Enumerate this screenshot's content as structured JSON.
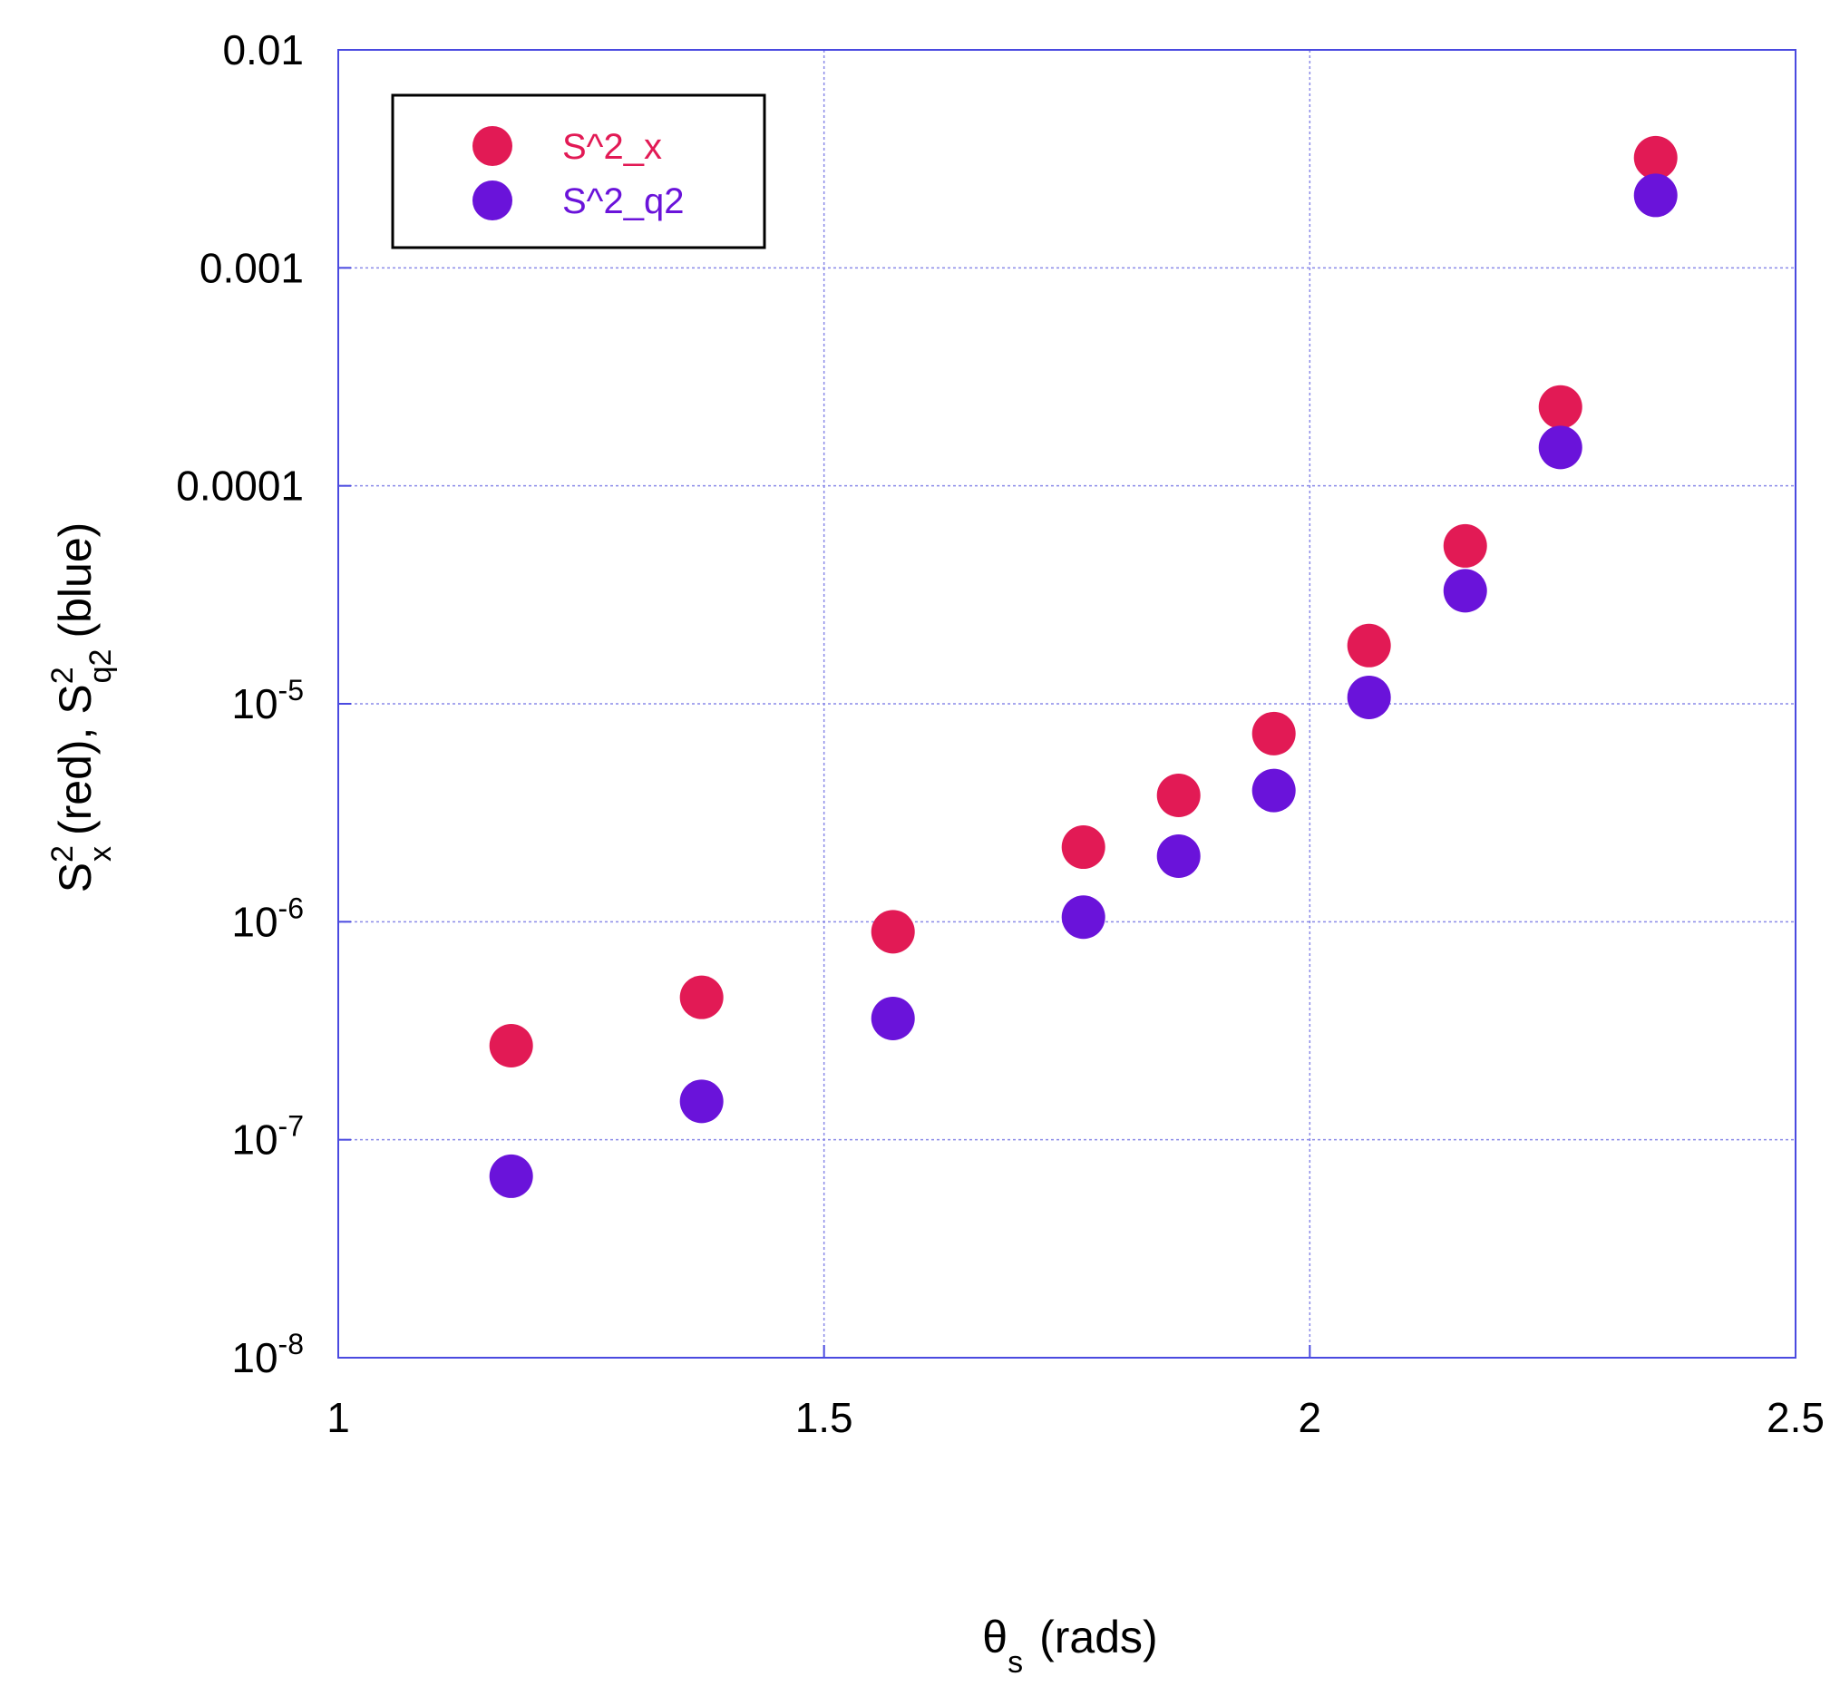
{
  "chart_data": {
    "type": "scatter",
    "title": "",
    "xlabel": {
      "symbol": "θ",
      "sub": "s",
      "rest": "(rads)"
    },
    "ylabel": {
      "s1": "S",
      "sup1": "2",
      "sub1": "x",
      "mid": "(red), ",
      "s2": "S",
      "sup2": "2",
      "sub2": "q2",
      "end": "(blue)"
    },
    "xlim": [
      1,
      2.5
    ],
    "ylim": [
      1e-08,
      0.01
    ],
    "yscale": "log",
    "grid": true,
    "x_ticks": [
      {
        "value": 1,
        "label": "1"
      },
      {
        "value": 1.5,
        "label": "1.5"
      },
      {
        "value": 2,
        "label": "2"
      },
      {
        "value": 2.5,
        "label": "2.5"
      }
    ],
    "y_ticks": [
      {
        "value": 0.01,
        "label": "0.01",
        "base": "",
        "exp": ""
      },
      {
        "value": 0.001,
        "label": "0.001",
        "base": "",
        "exp": ""
      },
      {
        "value": 0.0001,
        "label": "0.0001",
        "base": "",
        "exp": ""
      },
      {
        "value": 1e-05,
        "label": "",
        "base": "10",
        "exp": "-5"
      },
      {
        "value": 1e-06,
        "label": "",
        "base": "10",
        "exp": "-6"
      },
      {
        "value": 1e-07,
        "label": "",
        "base": "10",
        "exp": "-7"
      },
      {
        "value": 1e-08,
        "label": "",
        "base": "10",
        "exp": "-8"
      }
    ],
    "legend_position": "top-left",
    "series": [
      {
        "name": "S^2_x",
        "color": "#E21A55",
        "points": [
          [
            1.178,
            2.7e-07
          ],
          [
            1.374,
            4.5e-07
          ],
          [
            1.571,
            9e-07
          ],
          [
            1.767,
            2.2e-06
          ],
          [
            1.865,
            3.8e-06
          ],
          [
            1.963,
            7.3e-06
          ],
          [
            2.061,
            1.85e-05
          ],
          [
            2.16,
            5.3e-05
          ],
          [
            2.258,
            0.00023
          ],
          [
            2.356,
            0.0032
          ]
        ]
      },
      {
        "name": "S^2_q2",
        "color": "#6A13DA",
        "points": [
          [
            1.178,
            6.8e-08
          ],
          [
            1.374,
            1.5e-07
          ],
          [
            1.571,
            3.6e-07
          ],
          [
            1.767,
            1.05e-06
          ],
          [
            1.865,
            2e-06
          ],
          [
            1.963,
            4e-06
          ],
          [
            2.061,
            1.07e-05
          ],
          [
            2.16,
            3.3e-05
          ],
          [
            2.258,
            0.00015
          ],
          [
            2.356,
            0.00215
          ]
        ]
      }
    ]
  }
}
